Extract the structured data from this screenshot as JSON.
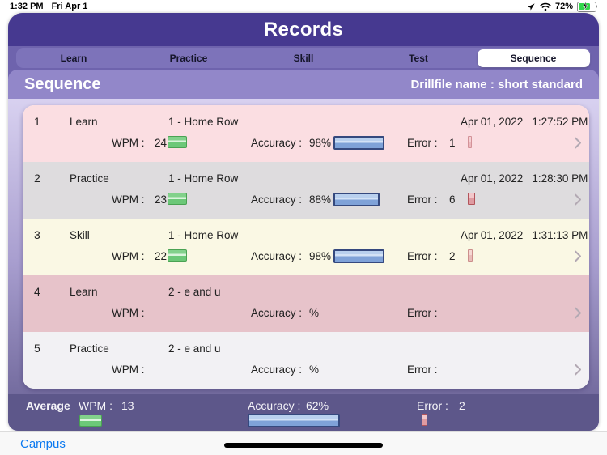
{
  "status_bar": {
    "time": "1:32 PM",
    "date": "Fri Apr 1",
    "battery_percent": "72%"
  },
  "header": {
    "title": "Records"
  },
  "tabs": [
    {
      "label": "Learn",
      "selected": false
    },
    {
      "label": "Practice",
      "selected": false
    },
    {
      "label": "Skill",
      "selected": false
    },
    {
      "label": "Test",
      "selected": false
    },
    {
      "label": "Sequence",
      "selected": true
    }
  ],
  "section": {
    "title": "Sequence",
    "drillfile": "Drillfile name : short standard"
  },
  "labels": {
    "wpm": "WPM :",
    "accuracy": "Accuracy :",
    "error": "Error :"
  },
  "records": [
    {
      "index": "1",
      "type": "Learn",
      "drill": "1 - Home Row",
      "date": "Apr 01, 2022",
      "time": "1:27:52 PM",
      "wpm": 24,
      "wpm_text": "24",
      "accuracy": 98,
      "accuracy_text": "98%",
      "error": 1,
      "error_text": "1",
      "bg": "#fbdee2"
    },
    {
      "index": "2",
      "type": "Practice",
      "drill": "1 - Home Row",
      "date": "Apr 01, 2022",
      "time": "1:28:30 PM",
      "wpm": 23,
      "wpm_text": "23",
      "accuracy": 88,
      "accuracy_text": "88%",
      "error": 6,
      "error_text": "6",
      "bg": "#dedcde"
    },
    {
      "index": "3",
      "type": "Skill",
      "drill": "1 - Home Row",
      "date": "Apr 01, 2022",
      "time": "1:31:13 PM",
      "wpm": 22,
      "wpm_text": "22",
      "accuracy": 98,
      "accuracy_text": "98%",
      "error": 2,
      "error_text": "2",
      "bg": "#faf8e4"
    },
    {
      "index": "4",
      "type": "Learn",
      "drill": "2 - e and u",
      "date": "",
      "time": "",
      "wpm": null,
      "wpm_text": "",
      "accuracy": null,
      "accuracy_text": "%",
      "error": null,
      "error_text": "",
      "bg": "#e7c3ca"
    },
    {
      "index": "5",
      "type": "Practice",
      "drill": "2 - e and u",
      "date": "",
      "time": "",
      "wpm": null,
      "wpm_text": "",
      "accuracy": null,
      "accuracy_text": "%",
      "error": null,
      "error_text": "",
      "bg": "#f2f1f4"
    }
  ],
  "average": {
    "label": "Average",
    "wpm": 13,
    "wpm_text": "13",
    "accuracy": 62,
    "accuracy_text": "62%",
    "error": 2,
    "error_text": "2"
  },
  "bottom_bar": {
    "link": "Campus"
  },
  "colors": {
    "header_purple": "#463990",
    "tabbar_purple": "#7d73ba",
    "section_purple": "#9287c9",
    "footer_purple": "#5d578a",
    "wpm_bar_green": "#6cc878",
    "accuracy_bar_blue": "#7fa2d8",
    "error_bar_red": "#e09ba1",
    "link_blue": "#0b79f0",
    "battery_green": "#32d74b"
  }
}
